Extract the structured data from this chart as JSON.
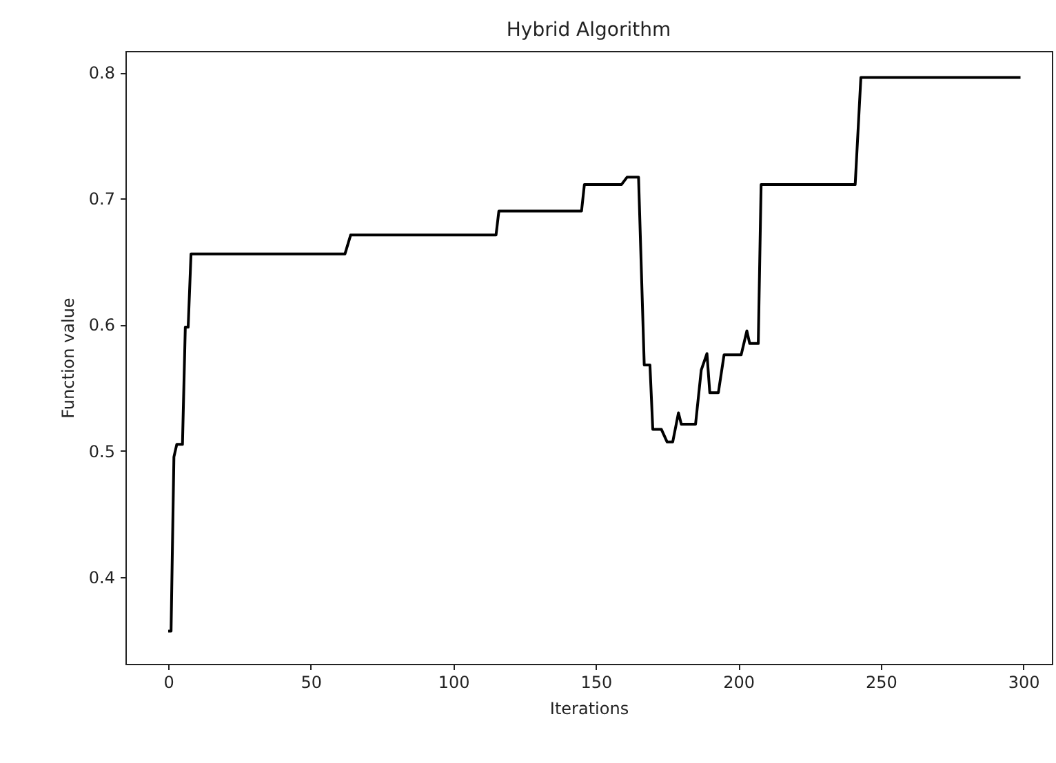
{
  "chart_data": {
    "type": "line",
    "title": "Hybrid Algorithm",
    "xlabel": "Iterations",
    "ylabel": "Function value",
    "x": [
      0,
      1,
      2,
      3,
      5,
      6,
      7,
      8,
      62,
      64,
      115,
      116,
      145,
      146,
      159,
      161,
      165,
      167,
      169,
      170,
      173,
      175,
      177,
      179,
      180,
      185,
      187,
      189,
      190,
      193,
      195,
      201,
      203,
      204,
      207,
      208,
      241,
      243,
      299
    ],
    "series": [
      {
        "color": "#000000",
        "values": [
          0.357,
          0.357,
          0.495,
          0.505,
          0.505,
          0.598,
          0.598,
          0.656,
          0.656,
          0.671,
          0.671,
          0.69,
          0.69,
          0.711,
          0.711,
          0.717,
          0.717,
          0.568,
          0.568,
          0.517,
          0.517,
          0.507,
          0.507,
          0.53,
          0.521,
          0.521,
          0.564,
          0.577,
          0.546,
          0.546,
          0.576,
          0.576,
          0.595,
          0.585,
          0.585,
          0.711,
          0.711,
          0.796,
          0.796
        ]
      }
    ],
    "xlim": [
      -15,
      310
    ],
    "ylim": [
      0.331,
      0.817
    ],
    "xticks": [
      0,
      50,
      100,
      150,
      200,
      250,
      300
    ],
    "yticks": [
      0.4,
      0.5,
      0.6,
      0.7,
      0.8
    ],
    "grid": false,
    "legend": false,
    "marker": "none",
    "line_style": "solid"
  }
}
